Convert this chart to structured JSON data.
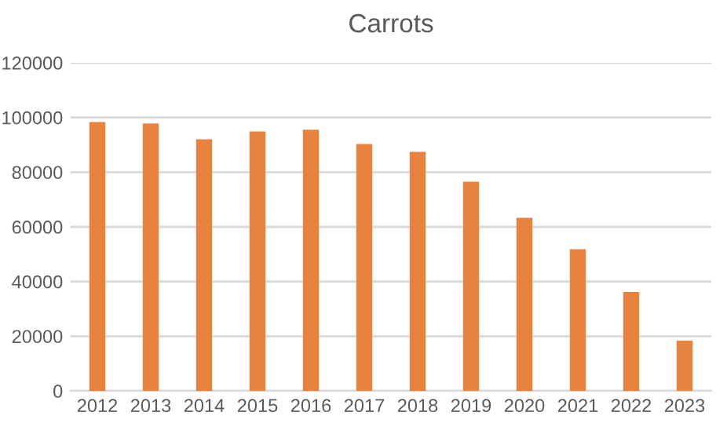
{
  "chart_data": {
    "type": "bar",
    "title": "Carrots",
    "categories": [
      "2012",
      "2013",
      "2014",
      "2015",
      "2016",
      "2017",
      "2018",
      "2019",
      "2020",
      "2021",
      "2022",
      "2023"
    ],
    "values": [
      98300,
      97800,
      92000,
      94900,
      95500,
      90300,
      87400,
      76500,
      63300,
      51800,
      36200,
      18400
    ],
    "color": "#e8823f",
    "ylim": [
      0,
      120000
    ],
    "yticks": [
      0,
      20000,
      40000,
      60000,
      80000,
      100000,
      120000
    ],
    "grid": "y",
    "legend": false
  }
}
